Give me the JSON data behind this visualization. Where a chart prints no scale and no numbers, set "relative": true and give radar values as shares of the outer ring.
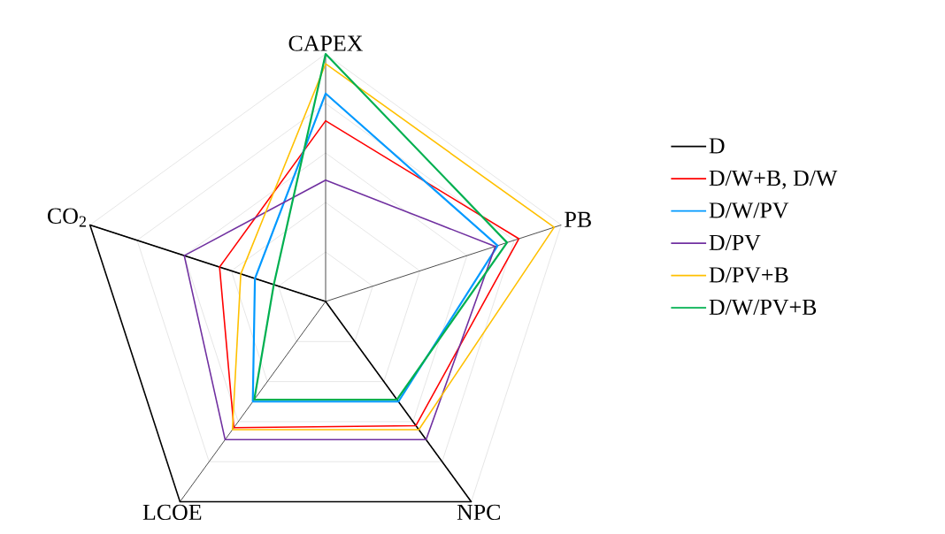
{
  "chart_data": {
    "type": "radar",
    "relative": true,
    "grid": true,
    "legend": "right",
    "categories": [
      "CAPEX",
      "PB",
      "NPC",
      "LCOE",
      "CO$_{2}$"
    ],
    "series": [
      {
        "name": "D",
        "color": "#000000",
        "values": [
          0,
          0,
          1,
          1,
          1
        ]
      },
      {
        "name": "D/W+B, D/W",
        "color": "#ff0000",
        "values": [
          0.73,
          0.82,
          0.62,
          0.63,
          0.45
        ]
      },
      {
        "name": "D/W/PV",
        "color": "#0099ff",
        "values": [
          0.84,
          0.73,
          0.5,
          0.5,
          0.3
        ]
      },
      {
        "name": "D/PV",
        "color": "#7030a0",
        "values": [
          0.49,
          0.72,
          0.69,
          0.69,
          0.6
        ]
      },
      {
        "name": "D/PV+B",
        "color": "#ffc000",
        "values": [
          0.96,
          0.97,
          0.64,
          0.64,
          0.36
        ]
      },
      {
        "name": "D/W/PV+B",
        "color": "#00b050",
        "values": [
          1,
          0.77,
          0.49,
          0.49,
          0.22
        ]
      }
    ]
  }
}
